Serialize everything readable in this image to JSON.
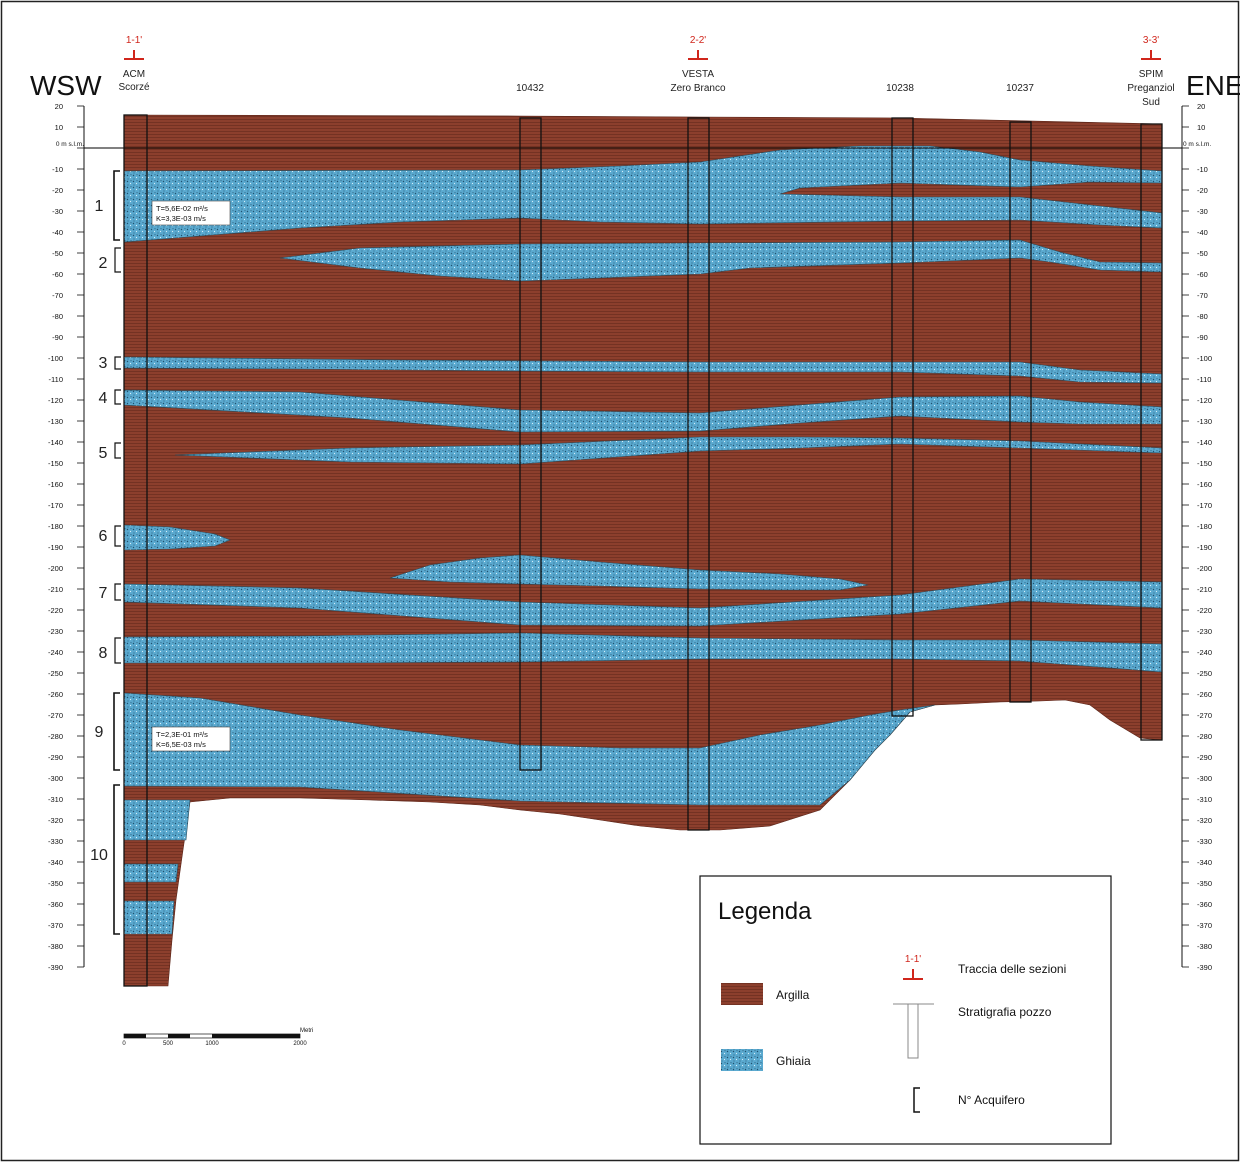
{
  "title_left": "WSW",
  "title_right": "ENE",
  "colors": {
    "clay": "#8c3f2d",
    "clay_line": "#6e2e20",
    "gravel": "#5aa9cf",
    "gravel_dot": "#20506e",
    "section_marker": "#d0261c",
    "frame": "#222222"
  },
  "sections": [
    {
      "code": "1-1'"
    },
    {
      "code": "2-2'"
    },
    {
      "code": "3-3'"
    }
  ],
  "wells": [
    {
      "name": "ACM Scorzé",
      "lines": [
        "ACM",
        "Scorzé"
      ]
    },
    {
      "name": "10432",
      "lines": [
        "10432"
      ]
    },
    {
      "name": "VESTA Zero Branco",
      "lines": [
        "VESTA",
        "Zero Branco"
      ]
    },
    {
      "name": "10238",
      "lines": [
        "10238"
      ]
    },
    {
      "name": "10237",
      "lines": [
        "10237"
      ]
    },
    {
      "name": "SPIM Preganziol Sud",
      "lines": [
        "SPIM",
        "Preganziol",
        "Sud"
      ]
    }
  ],
  "depth_axis": {
    "zero_label": "0 m s.l.m.",
    "ticks": [
      20,
      10,
      0,
      -10,
      -20,
      -30,
      -40,
      -50,
      -60,
      -70,
      -80,
      -90,
      -100,
      -110,
      -120,
      -130,
      -140,
      -150,
      -160,
      -170,
      -180,
      -190,
      -200,
      -210,
      -220,
      -230,
      -240,
      -250,
      -260,
      -270,
      -280,
      -290,
      -300,
      -310,
      -320,
      -330,
      -340,
      -350,
      -360,
      -370,
      -380,
      -390
    ]
  },
  "aquifers": [
    "1",
    "2",
    "3",
    "4",
    "5",
    "6",
    "7",
    "8",
    "9",
    "10"
  ],
  "annotations": {
    "aq1": {
      "t": "T=5,6E-02 m²/s",
      "k": "K=3,3E-03 m/s"
    },
    "aq9": {
      "t": "T=2,3E-01 m²/s",
      "k": "K=6,5E-03 m/s"
    }
  },
  "scale_bar": {
    "unit": "Metri",
    "labels": [
      "0",
      "500",
      "1000",
      "2000"
    ]
  },
  "legend": {
    "title": "Legenda",
    "clay_label": "Argilla",
    "gravel_label": "Ghiaia",
    "section_label": "Traccia delle sezioni",
    "section_code": "1-1'",
    "well_label": "Stratigrafia pozzo",
    "aquifer_label": "N° Acquifero"
  }
}
